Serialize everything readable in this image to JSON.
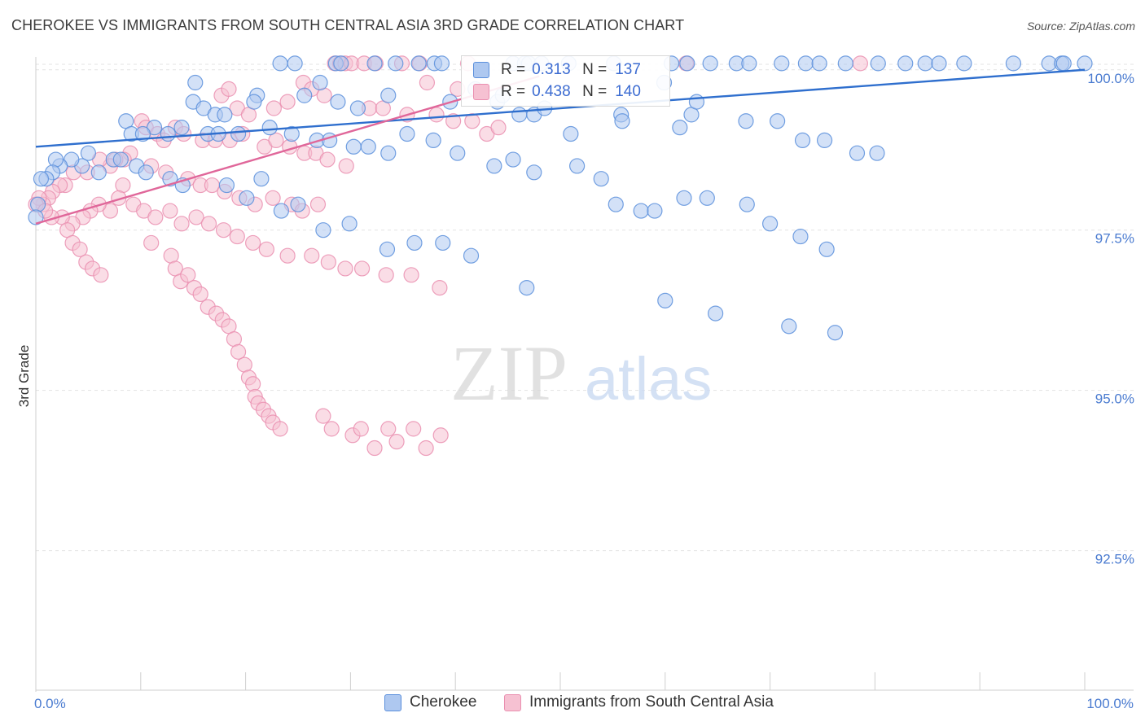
{
  "title": "CHEROKEE VS IMMIGRANTS FROM SOUTH CENTRAL ASIA 3RD GRADE CORRELATION CHART",
  "source": "Source: ZipAtlas.com",
  "watermark": {
    "zip": "ZIP",
    "atlas": "atlas"
  },
  "legend": {
    "r_label": "R =",
    "n_label": "N =",
    "series": [
      {
        "name": "Cherokee",
        "r": "0.313",
        "n": "137"
      },
      {
        "name": "Immigrants from South Central Asia",
        "r": "0.438",
        "n": "140"
      }
    ]
  },
  "colors": {
    "blue_fill": "#aec8f0",
    "blue_stroke": "#5b8fdc",
    "blue_line": "#2f6fce",
    "pink_fill": "#f6c1d2",
    "pink_stroke": "#ea8fb0",
    "pink_line": "#e0679a",
    "tick_text": "#4a7bd0",
    "grid": "#e3e3e3"
  },
  "chart_data": {
    "type": "scatter",
    "title": "CHEROKEE VS IMMIGRANTS FROM SOUTH CENTRAL ASIA 3RD GRADE CORRELATION CHART",
    "xlabel": "",
    "ylabel": "3rd Grade",
    "xlim": [
      0,
      100
    ],
    "ylim": [
      90.4,
      100.2
    ],
    "x_tick_labels": [
      {
        "value": 0,
        "label": "0.0%"
      },
      {
        "value": 100,
        "label": "100.0%"
      }
    ],
    "y_tick_labels": [
      {
        "value": 100,
        "label": "100.0%"
      },
      {
        "value": 97.5,
        "label": "97.5%"
      },
      {
        "value": 95,
        "label": "95.0%"
      },
      {
        "value": 92.5,
        "label": "92.5%"
      }
    ],
    "x_minor_ticks": [
      0,
      10,
      20,
      30,
      40,
      50,
      60,
      70,
      80,
      90,
      100
    ],
    "grid": true,
    "legend_position": "top-center",
    "series": [
      {
        "name": "Cherokee",
        "trend": {
          "x": [
            0,
            100
          ],
          "y": [
            98.8,
            100.0
          ]
        },
        "points": [
          [
            23.3,
            100.1
          ],
          [
            24.7,
            100.1
          ],
          [
            28.6,
            100.1
          ],
          [
            29.1,
            100.1
          ],
          [
            32.3,
            100.1
          ],
          [
            34.3,
            100.1
          ],
          [
            36.5,
            100.1
          ],
          [
            38.0,
            100.1
          ],
          [
            38.7,
            100.1
          ],
          [
            45.5,
            100.1
          ],
          [
            46.6,
            100.1
          ],
          [
            47.0,
            100.1
          ],
          [
            48.2,
            100.1
          ],
          [
            50.8,
            100.1
          ],
          [
            55.1,
            100.1
          ],
          [
            60.6,
            100.1
          ],
          [
            62.1,
            100.1
          ],
          [
            64.3,
            100.1
          ],
          [
            66.8,
            100.1
          ],
          [
            68.0,
            100.1
          ],
          [
            71.1,
            100.1
          ],
          [
            73.4,
            100.1
          ],
          [
            74.7,
            100.1
          ],
          [
            77.2,
            100.1
          ],
          [
            80.3,
            100.1
          ],
          [
            82.9,
            100.1
          ],
          [
            84.8,
            100.1
          ],
          [
            86.1,
            100.1
          ],
          [
            88.5,
            100.1
          ],
          [
            93.2,
            100.1
          ],
          [
            96.6,
            100.1
          ],
          [
            97.8,
            100.1
          ],
          [
            98.0,
            100.1
          ],
          [
            100.0,
            100.1
          ],
          [
            21.5,
            98.3
          ],
          [
            21.1,
            99.6
          ],
          [
            20.8,
            99.5
          ],
          [
            25.6,
            99.6
          ],
          [
            27.1,
            99.8
          ],
          [
            28.8,
            99.5
          ],
          [
            30.7,
            99.4
          ],
          [
            33.6,
            99.6
          ],
          [
            39.5,
            99.5
          ],
          [
            41.9,
            99.7
          ],
          [
            44.0,
            99.5
          ],
          [
            44.5,
            99.6
          ],
          [
            47.5,
            99.3
          ],
          [
            48.5,
            99.4
          ],
          [
            55.8,
            99.3
          ],
          [
            61.4,
            99.1
          ],
          [
            62.5,
            99.3
          ],
          [
            67.7,
            99.2
          ],
          [
            70.7,
            99.2
          ],
          [
            73.1,
            98.9
          ],
          [
            75.2,
            98.9
          ],
          [
            78.3,
            98.7
          ],
          [
            80.2,
            98.7
          ],
          [
            15.2,
            99.8
          ],
          [
            15.0,
            99.5
          ],
          [
            16.0,
            99.4
          ],
          [
            17.1,
            99.3
          ],
          [
            18.0,
            99.3
          ],
          [
            19.3,
            99.0
          ],
          [
            11.3,
            99.1
          ],
          [
            8.6,
            99.2
          ],
          [
            9.1,
            99.0
          ],
          [
            10.2,
            99.0
          ],
          [
            12.6,
            99.0
          ],
          [
            13.9,
            99.1
          ],
          [
            16.4,
            99.0
          ],
          [
            17.4,
            99.0
          ],
          [
            22.3,
            99.1
          ],
          [
            24.4,
            99.0
          ],
          [
            26.8,
            98.9
          ],
          [
            28.0,
            98.9
          ],
          [
            30.3,
            98.8
          ],
          [
            31.7,
            98.8
          ],
          [
            33.6,
            98.7
          ],
          [
            35.4,
            99.0
          ],
          [
            37.9,
            98.9
          ],
          [
            40.2,
            98.7
          ],
          [
            43.7,
            98.5
          ],
          [
            45.5,
            98.6
          ],
          [
            47.5,
            98.4
          ],
          [
            51.6,
            98.5
          ],
          [
            53.9,
            98.3
          ],
          [
            55.3,
            97.9
          ],
          [
            57.7,
            97.8
          ],
          [
            59.0,
            97.8
          ],
          [
            61.8,
            98.0
          ],
          [
            64.0,
            98.0
          ],
          [
            67.8,
            97.9
          ],
          [
            70.0,
            97.6
          ],
          [
            72.9,
            97.4
          ],
          [
            75.4,
            97.2
          ],
          [
            5.0,
            98.7
          ],
          [
            4.4,
            98.5
          ],
          [
            3.4,
            98.6
          ],
          [
            2.3,
            98.5
          ],
          [
            1.9,
            98.6
          ],
          [
            1.6,
            98.4
          ],
          [
            1.0,
            98.3
          ],
          [
            0.5,
            98.3
          ],
          [
            0.2,
            97.9
          ],
          [
            0.0,
            97.7
          ],
          [
            6.0,
            98.4
          ],
          [
            7.4,
            98.6
          ],
          [
            8.1,
            98.6
          ],
          [
            9.6,
            98.5
          ],
          [
            10.5,
            98.4
          ],
          [
            12.8,
            98.3
          ],
          [
            14.0,
            98.2
          ],
          [
            18.2,
            98.2
          ],
          [
            20.1,
            98.0
          ],
          [
            23.4,
            97.8
          ],
          [
            25.0,
            97.9
          ],
          [
            27.4,
            97.5
          ],
          [
            29.9,
            97.6
          ],
          [
            33.5,
            97.2
          ],
          [
            36.1,
            97.3
          ],
          [
            38.8,
            97.3
          ],
          [
            41.5,
            97.1
          ],
          [
            46.8,
            96.6
          ],
          [
            60.0,
            96.4
          ],
          [
            64.8,
            96.2
          ],
          [
            71.8,
            96.0
          ],
          [
            76.2,
            95.9
          ],
          [
            51.0,
            99.0
          ],
          [
            55.9,
            99.2
          ],
          [
            46.1,
            99.3
          ],
          [
            59.9,
            99.8
          ],
          [
            63.0,
            99.5
          ]
        ]
      },
      {
        "name": "Immigrants from South Central Asia",
        "trend": {
          "x": [
            0,
            48
          ],
          "y": [
            97.6,
            99.9
          ]
        },
        "points": [
          [
            28.5,
            100.1
          ],
          [
            29.0,
            100.1
          ],
          [
            29.5,
            100.1
          ],
          [
            30.1,
            100.1
          ],
          [
            31.3,
            100.1
          ],
          [
            32.4,
            100.1
          ],
          [
            34.9,
            100.1
          ],
          [
            36.6,
            100.1
          ],
          [
            41.2,
            100.1
          ],
          [
            62.0,
            100.1
          ],
          [
            78.6,
            100.1
          ],
          [
            25.5,
            99.8
          ],
          [
            26.3,
            99.7
          ],
          [
            27.5,
            99.6
          ],
          [
            37.3,
            99.8
          ],
          [
            40.2,
            99.7
          ],
          [
            17.7,
            99.6
          ],
          [
            18.4,
            99.7
          ],
          [
            19.2,
            99.4
          ],
          [
            20.3,
            99.3
          ],
          [
            22.7,
            99.4
          ],
          [
            24.0,
            99.5
          ],
          [
            31.8,
            99.4
          ],
          [
            33.1,
            99.4
          ],
          [
            35.4,
            99.3
          ],
          [
            38.2,
            99.3
          ],
          [
            39.8,
            99.2
          ],
          [
            41.6,
            99.2
          ],
          [
            43.0,
            99.0
          ],
          [
            44.1,
            99.1
          ],
          [
            10.1,
            99.2
          ],
          [
            10.5,
            99.1
          ],
          [
            11.6,
            99.0
          ],
          [
            12.2,
            98.9
          ],
          [
            13.3,
            99.1
          ],
          [
            14.1,
            99.0
          ],
          [
            15.9,
            98.9
          ],
          [
            17.1,
            98.9
          ],
          [
            18.5,
            98.9
          ],
          [
            19.7,
            99.0
          ],
          [
            21.8,
            98.8
          ],
          [
            22.9,
            98.9
          ],
          [
            24.2,
            98.8
          ],
          [
            25.6,
            98.7
          ],
          [
            26.7,
            98.7
          ],
          [
            27.8,
            98.6
          ],
          [
            29.6,
            98.5
          ],
          [
            9.0,
            98.7
          ],
          [
            8.4,
            98.6
          ],
          [
            7.6,
            98.6
          ],
          [
            7.1,
            98.5
          ],
          [
            6.1,
            98.6
          ],
          [
            4.9,
            98.4
          ],
          [
            3.6,
            98.4
          ],
          [
            2.8,
            98.2
          ],
          [
            2.3,
            98.2
          ],
          [
            1.6,
            98.1
          ],
          [
            1.2,
            98.0
          ],
          [
            0.7,
            97.9
          ],
          [
            0.3,
            98.0
          ],
          [
            0.0,
            97.9
          ],
          [
            11.0,
            98.5
          ],
          [
            12.4,
            98.4
          ],
          [
            14.5,
            98.3
          ],
          [
            15.7,
            98.2
          ],
          [
            16.8,
            98.2
          ],
          [
            18.0,
            98.1
          ],
          [
            19.4,
            98.0
          ],
          [
            20.9,
            97.9
          ],
          [
            22.6,
            98.0
          ],
          [
            24.4,
            97.9
          ],
          [
            25.4,
            97.8
          ],
          [
            26.9,
            97.9
          ],
          [
            8.3,
            98.2
          ],
          [
            7.9,
            98.0
          ],
          [
            7.1,
            97.8
          ],
          [
            6.0,
            97.9
          ],
          [
            5.2,
            97.8
          ],
          [
            4.5,
            97.7
          ],
          [
            3.5,
            97.6
          ],
          [
            2.5,
            97.7
          ],
          [
            1.5,
            97.7
          ],
          [
            0.9,
            97.8
          ],
          [
            9.3,
            97.9
          ],
          [
            10.3,
            97.8
          ],
          [
            11.4,
            97.7
          ],
          [
            12.8,
            97.8
          ],
          [
            13.9,
            97.6
          ],
          [
            15.3,
            97.7
          ],
          [
            16.5,
            97.6
          ],
          [
            17.9,
            97.5
          ],
          [
            19.2,
            97.4
          ],
          [
            20.7,
            97.3
          ],
          [
            22.0,
            97.2
          ],
          [
            24.0,
            97.1
          ],
          [
            26.3,
            97.1
          ],
          [
            27.9,
            97.0
          ],
          [
            29.5,
            96.9
          ],
          [
            31.1,
            96.9
          ],
          [
            33.4,
            96.8
          ],
          [
            35.8,
            96.8
          ],
          [
            38.5,
            96.6
          ],
          [
            11.0,
            97.3
          ],
          [
            12.9,
            97.1
          ],
          [
            13.3,
            96.9
          ],
          [
            13.8,
            96.7
          ],
          [
            14.5,
            96.8
          ],
          [
            15.1,
            96.6
          ],
          [
            15.7,
            96.5
          ],
          [
            16.4,
            96.3
          ],
          [
            17.2,
            96.2
          ],
          [
            17.8,
            96.1
          ],
          [
            18.4,
            96.0
          ],
          [
            18.9,
            95.8
          ],
          [
            19.3,
            95.6
          ],
          [
            19.9,
            95.4
          ],
          [
            20.3,
            95.2
          ],
          [
            20.7,
            95.1
          ],
          [
            20.9,
            94.9
          ],
          [
            21.2,
            94.8
          ],
          [
            21.7,
            94.7
          ],
          [
            22.2,
            94.6
          ],
          [
            22.6,
            94.5
          ],
          [
            23.3,
            94.4
          ],
          [
            27.4,
            94.6
          ],
          [
            28.2,
            94.4
          ],
          [
            30.2,
            94.3
          ],
          [
            31.0,
            94.4
          ],
          [
            32.3,
            94.1
          ],
          [
            33.6,
            94.4
          ],
          [
            34.4,
            94.2
          ],
          [
            36.0,
            94.4
          ],
          [
            37.2,
            94.1
          ],
          [
            38.6,
            94.3
          ],
          [
            3.0,
            97.5
          ],
          [
            3.5,
            97.3
          ],
          [
            4.2,
            97.2
          ],
          [
            4.8,
            97.0
          ],
          [
            5.4,
            96.9
          ],
          [
            6.2,
            96.8
          ]
        ]
      }
    ]
  }
}
